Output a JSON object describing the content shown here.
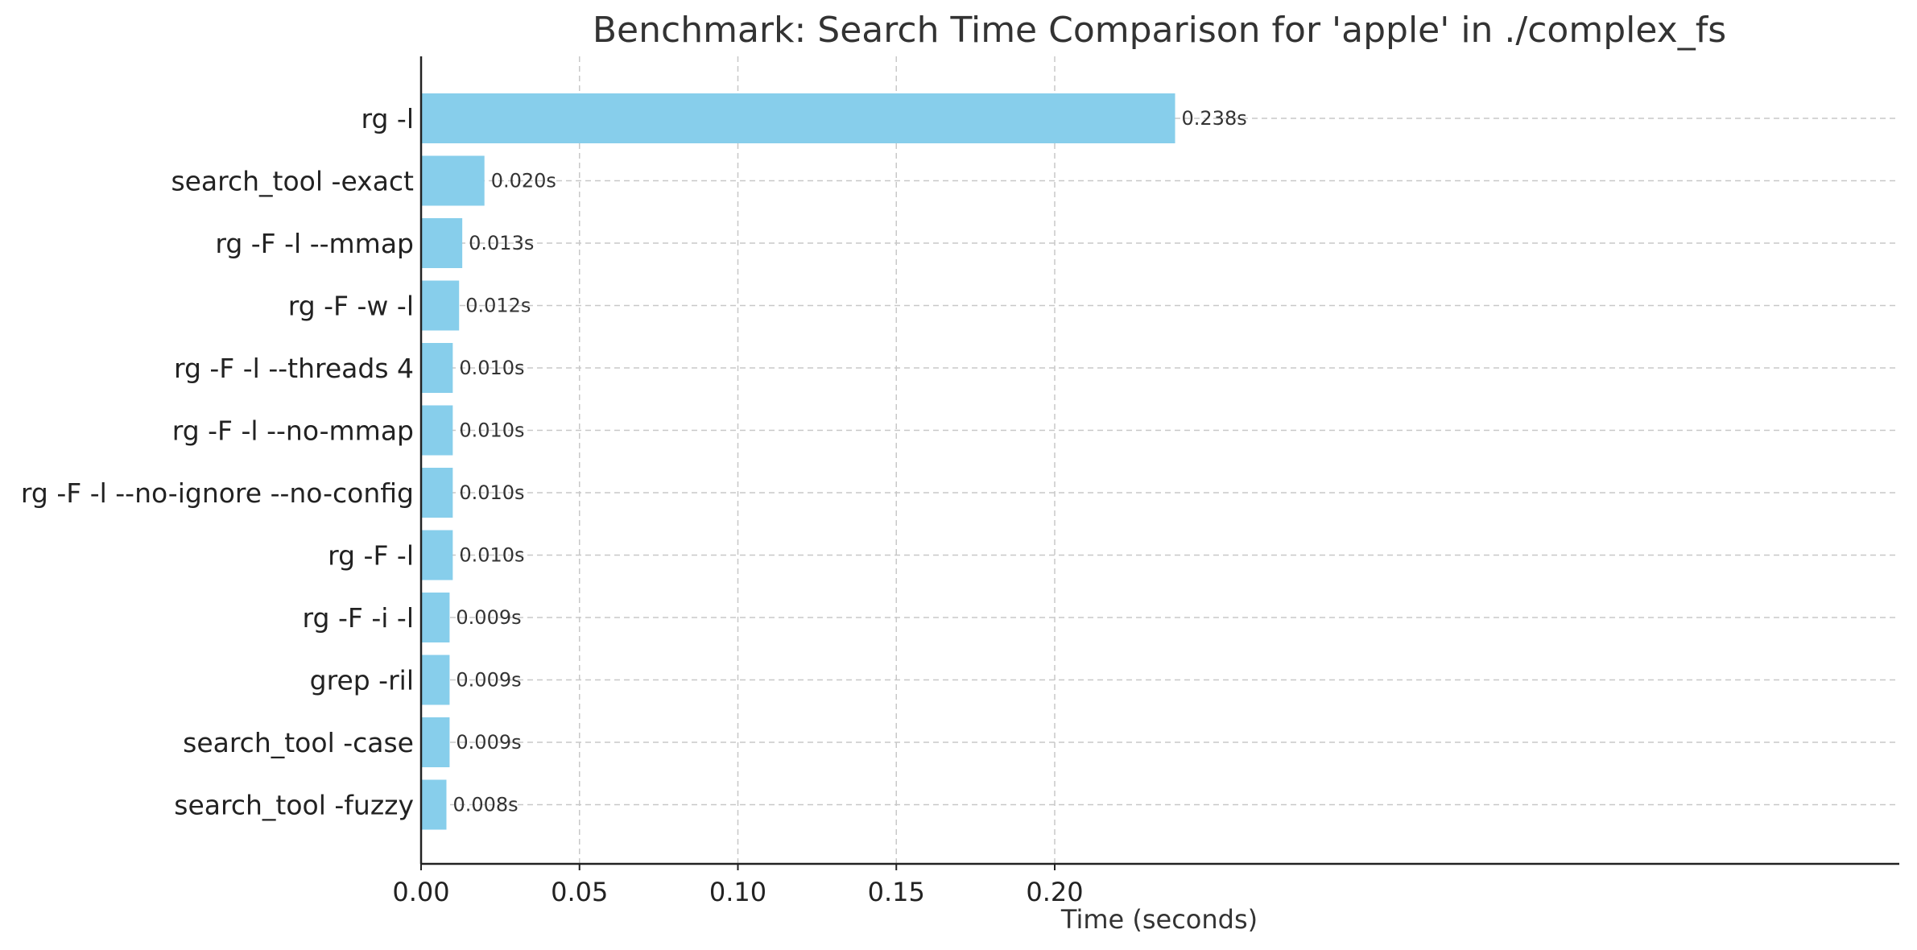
{
  "chart_data": {
    "type": "bar",
    "orientation": "horizontal",
    "title": "Benchmark: Search Time Comparison for 'apple' in ./complex_fs",
    "xlabel": "Time (seconds)",
    "ylabel": "",
    "categories": [
      "rg -l",
      "search_tool -exact",
      "rg -F -l --mmap",
      "rg -F -w -l",
      "rg -F -l --threads 4",
      "rg -F -l --no-mmap",
      "rg -F -l --no-ignore --no-config",
      "rg -F -l",
      "rg -F -i -l",
      "grep -ril",
      "search_tool -case",
      "search_tool -fuzzy"
    ],
    "values": [
      0.238,
      0.02,
      0.013,
      0.012,
      0.01,
      0.01,
      0.01,
      0.01,
      0.009,
      0.009,
      0.009,
      0.008
    ],
    "value_labels": [
      "0.238s",
      "0.020s",
      "0.013s",
      "0.012s",
      "0.010s",
      "0.010s",
      "0.010s",
      "0.010s",
      "0.009s",
      "0.009s",
      "0.009s",
      "0.008s"
    ],
    "xlim": [
      0,
      0.25
    ],
    "xticks": [
      0.0,
      0.05,
      0.1,
      0.15,
      0.2
    ],
    "xtick_labels": [
      "0.00",
      "0.05",
      "0.10",
      "0.15",
      "0.20"
    ],
    "grid": true,
    "legend": "none",
    "bar_color": "#87CEEB"
  }
}
